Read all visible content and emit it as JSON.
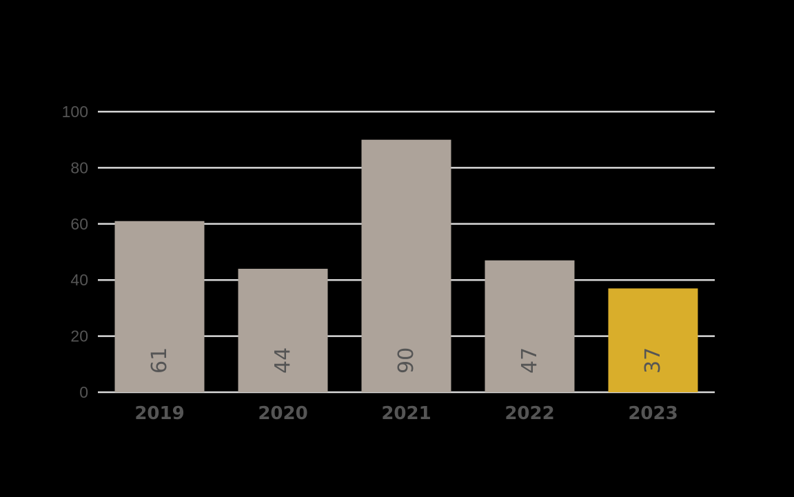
{
  "chart_data": {
    "type": "bar",
    "categories": [
      "2019",
      "2020",
      "2021",
      "2022",
      "2023"
    ],
    "values": [
      61,
      44,
      90,
      47,
      37
    ],
    "value_labels": [
      "61",
      "44",
      "90",
      "47",
      "37"
    ],
    "title": "",
    "xlabel": "",
    "ylabel": "",
    "ylim": [
      0,
      100
    ],
    "yticks": [
      0,
      20,
      40,
      60,
      80,
      100
    ],
    "ytick_labels": [
      "0",
      "20",
      "40",
      "60",
      "80",
      "100"
    ],
    "grid": true,
    "legend": "none",
    "colors": {
      "bar": "#ada39a",
      "highlight": "#d9ae2b",
      "grid": "#d9d9d9",
      "text": "#555555",
      "background": "#000000"
    },
    "highlight_index": 4
  }
}
